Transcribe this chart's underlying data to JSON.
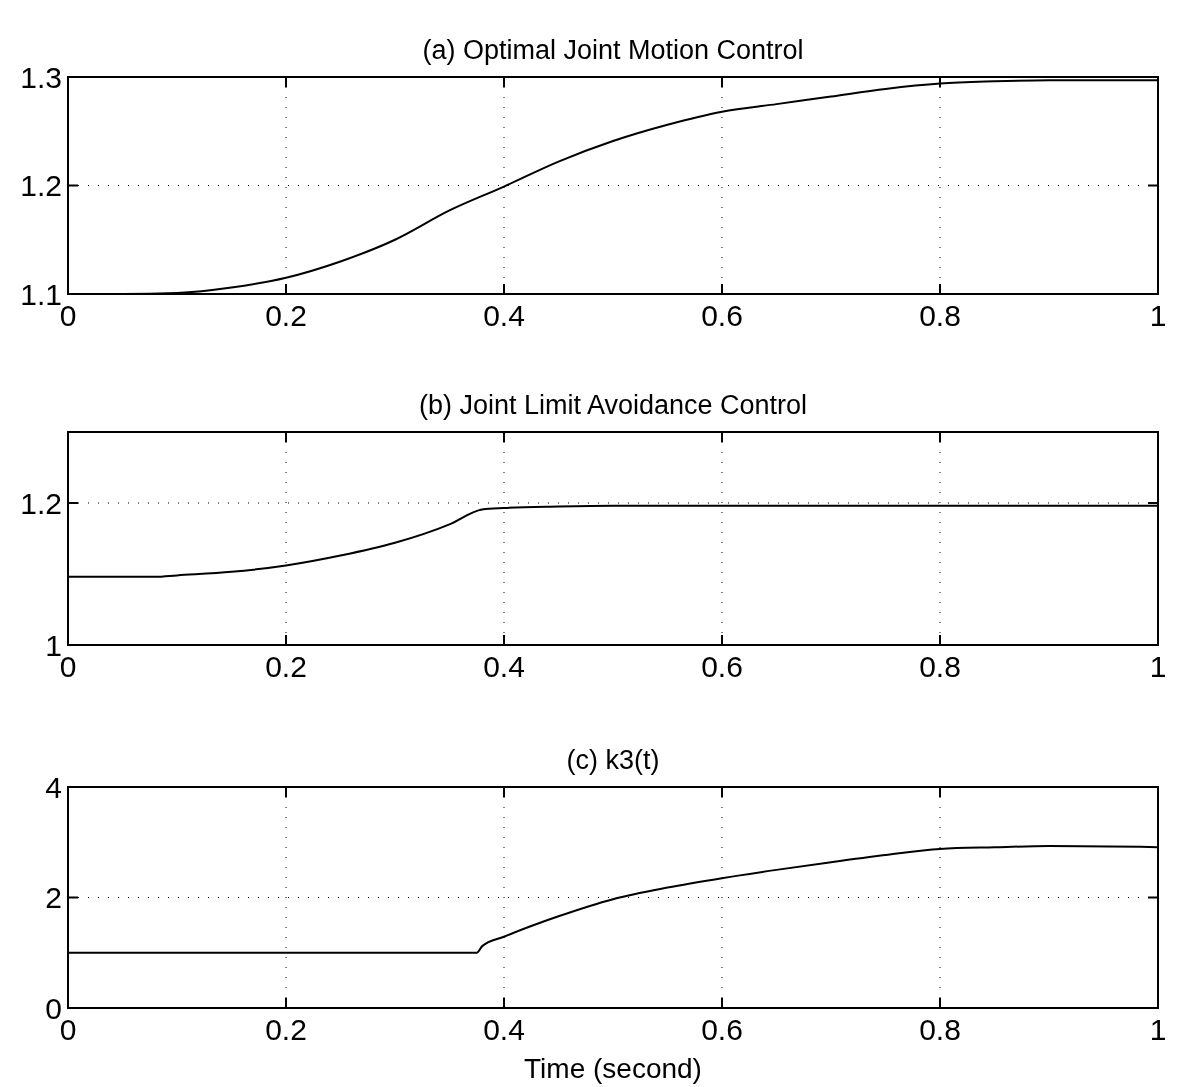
{
  "chart_data": [
    {
      "type": "line",
      "title": "(a) Optimal Joint Motion Control",
      "x": [
        0,
        0.05,
        0.1,
        0.15,
        0.2,
        0.25,
        0.3,
        0.35,
        0.4,
        0.45,
        0.5,
        0.55,
        0.6,
        0.65,
        0.7,
        0.75,
        0.8,
        0.85,
        0.9,
        0.95,
        1
      ],
      "series": [
        {
          "color": "#000000",
          "values": [
            1.1,
            1.1,
            1.101,
            1.106,
            1.115,
            1.13,
            1.15,
            1.177,
            1.199,
            1.222,
            1.241,
            1.256,
            1.268,
            1.275,
            1.282,
            1.289,
            1.294,
            1.296,
            1.297,
            1.297,
            1.297
          ]
        }
      ],
      "xlim": [
        0,
        1
      ],
      "xticks": [
        0,
        0.2,
        0.4,
        0.6,
        0.8,
        1
      ],
      "ylim": [
        1.1,
        1.3
      ],
      "yticks": [
        1.1,
        1.2,
        1.3
      ],
      "grid": true,
      "line_style": "solid",
      "marker": "none"
    },
    {
      "type": "line",
      "title": "(b) Joint Limit Avoidance Control",
      "x": [
        0,
        0.05,
        0.08,
        0.1,
        0.15,
        0.2,
        0.25,
        0.3,
        0.35,
        0.38,
        0.4,
        0.45,
        0.5,
        0.6,
        0.7,
        0.8,
        0.9,
        1
      ],
      "series": [
        {
          "color": "#000000",
          "values": [
            1.096,
            1.096,
            1.096,
            1.098,
            1.103,
            1.112,
            1.126,
            1.144,
            1.17,
            1.191,
            1.193,
            1.195,
            1.196,
            1.196,
            1.196,
            1.196,
            1.196,
            1.196
          ]
        }
      ],
      "xlim": [
        0,
        1
      ],
      "xticks": [
        0,
        0.2,
        0.4,
        0.6,
        0.8,
        1
      ],
      "ylim": [
        1,
        1.3
      ],
      "yticks": [
        1,
        1.2
      ],
      "grid": true,
      "line_style": "solid",
      "marker": "none"
    },
    {
      "type": "line",
      "title": "(c) k3(t)",
      "xlabel": "Time (second)",
      "x": [
        0,
        0.1,
        0.2,
        0.3,
        0.375,
        0.38,
        0.4,
        0.45,
        0.5,
        0.55,
        0.6,
        0.65,
        0.7,
        0.75,
        0.8,
        0.85,
        0.9,
        1
      ],
      "series": [
        {
          "color": "#000000",
          "values": [
            1,
            1,
            1,
            1,
            1,
            1.12,
            1.29,
            1.66,
            1.97,
            2.18,
            2.35,
            2.5,
            2.64,
            2.77,
            2.88,
            2.91,
            2.93,
            2.91
          ]
        }
      ],
      "xlim": [
        0,
        1
      ],
      "xticks": [
        0,
        0.2,
        0.4,
        0.6,
        0.8,
        1
      ],
      "ylim": [
        0,
        4
      ],
      "yticks": [
        0,
        2,
        4
      ],
      "grid": true,
      "line_style": "solid",
      "marker": "none"
    }
  ]
}
